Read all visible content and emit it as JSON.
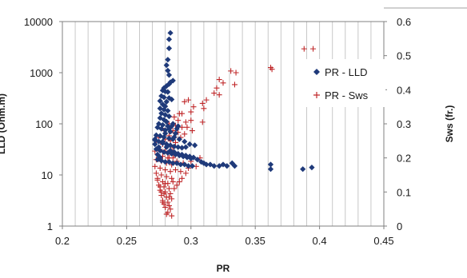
{
  "chart_data": {
    "type": "scatter",
    "xlabel": "PR",
    "ylabel_left": "LLD (Ohm.m)",
    "ylabel_right": "Sws (fr.)",
    "xlim": [
      0.2,
      0.45
    ],
    "ylim_left": [
      1,
      10000
    ],
    "yscale_left": "log",
    "ylim_right": [
      0,
      0.6
    ],
    "x_ticks": [
      "0.2",
      "0.25",
      "0.3",
      "0.35",
      "0.4",
      "0.45"
    ],
    "y_left_ticks": [
      "1",
      "10",
      "100",
      "1000",
      "10000"
    ],
    "y_right_ticks": [
      "0",
      "0.1",
      "0.2",
      "0.3",
      "0.4",
      "0.5",
      "0.6"
    ],
    "grid": "vertical",
    "legend_position": "right",
    "colors": {
      "lld": "#1f3a7a",
      "sws": "#c0282a"
    },
    "series": [
      {
        "name": "PR - LLD",
        "marker": "diamond",
        "axis": "left",
        "points": [
          [
            0.284,
            6000
          ],
          [
            0.283,
            4500
          ],
          [
            0.283,
            3000
          ],
          [
            0.282,
            1800
          ],
          [
            0.281,
            1400
          ],
          [
            0.282,
            1100
          ],
          [
            0.283,
            900
          ],
          [
            0.286,
            700
          ],
          [
            0.284,
            650
          ],
          [
            0.283,
            600
          ],
          [
            0.281,
            550
          ],
          [
            0.279,
            500
          ],
          [
            0.278,
            450
          ],
          [
            0.28,
            430
          ],
          [
            0.282,
            420
          ],
          [
            0.277,
            350
          ],
          [
            0.279,
            330
          ],
          [
            0.283,
            320
          ],
          [
            0.276,
            280
          ],
          [
            0.281,
            270
          ],
          [
            0.285,
            300
          ],
          [
            0.278,
            240
          ],
          [
            0.28,
            220
          ],
          [
            0.276,
            200
          ],
          [
            0.279,
            190
          ],
          [
            0.282,
            180
          ],
          [
            0.277,
            160
          ],
          [
            0.28,
            150
          ],
          [
            0.283,
            140
          ],
          [
            0.276,
            130
          ],
          [
            0.279,
            120
          ],
          [
            0.281,
            110
          ],
          [
            0.275,
            100
          ],
          [
            0.278,
            95
          ],
          [
            0.282,
            90
          ],
          [
            0.286,
            100
          ],
          [
            0.29,
            90
          ],
          [
            0.274,
            85
          ],
          [
            0.277,
            80
          ],
          [
            0.28,
            75
          ],
          [
            0.284,
            70
          ],
          [
            0.288,
            65
          ],
          [
            0.273,
            60
          ],
          [
            0.276,
            58
          ],
          [
            0.279,
            55
          ],
          [
            0.283,
            52
          ],
          [
            0.286,
            50
          ],
          [
            0.272,
            48
          ],
          [
            0.275,
            45
          ],
          [
            0.278,
            42
          ],
          [
            0.281,
            40
          ],
          [
            0.284,
            38
          ],
          [
            0.287,
            36
          ],
          [
            0.29,
            35
          ],
          [
            0.293,
            34
          ],
          [
            0.273,
            32
          ],
          [
            0.276,
            30
          ],
          [
            0.279,
            28
          ],
          [
            0.282,
            27
          ],
          [
            0.285,
            26
          ],
          [
            0.288,
            25
          ],
          [
            0.291,
            24
          ],
          [
            0.294,
            23
          ],
          [
            0.297,
            22
          ],
          [
            0.3,
            21
          ],
          [
            0.274,
            20
          ],
          [
            0.277,
            19
          ],
          [
            0.28,
            18
          ],
          [
            0.283,
            18
          ],
          [
            0.286,
            17
          ],
          [
            0.289,
            17
          ],
          [
            0.292,
            16
          ],
          [
            0.295,
            16
          ],
          [
            0.298,
            15
          ],
          [
            0.301,
            15
          ],
          [
            0.278,
            45
          ],
          [
            0.281,
            35
          ],
          [
            0.284,
            30
          ],
          [
            0.287,
            28
          ],
          [
            0.29,
            26
          ],
          [
            0.293,
            25
          ],
          [
            0.296,
            24
          ],
          [
            0.299,
            23
          ],
          [
            0.302,
            22
          ],
          [
            0.305,
            20
          ],
          [
            0.308,
            18
          ],
          [
            0.31,
            17
          ],
          [
            0.312,
            16
          ],
          [
            0.315,
            16
          ],
          [
            0.318,
            15
          ],
          [
            0.322,
            15
          ],
          [
            0.325,
            16
          ],
          [
            0.328,
            15
          ],
          [
            0.332,
            17
          ],
          [
            0.334,
            15
          ],
          [
            0.362,
            16
          ],
          [
            0.362,
            13
          ],
          [
            0.387,
            13
          ],
          [
            0.394,
            14
          ],
          [
            0.296,
            35
          ],
          [
            0.299,
            40
          ],
          [
            0.303,
            38
          ],
          [
            0.287,
            55
          ],
          [
            0.291,
            50
          ],
          [
            0.295,
            45
          ],
          [
            0.28,
            65
          ],
          [
            0.283,
            80
          ],
          [
            0.285,
            90
          ],
          [
            0.289,
            80
          ],
          [
            0.275,
            35
          ],
          [
            0.272,
            50
          ],
          [
            0.272,
            40
          ],
          [
            0.274,
            25
          ],
          [
            0.276,
            22
          ]
        ]
      },
      {
        "name": "PR - Sws",
        "marker": "plus",
        "axis": "right",
        "points": [
          [
            0.388,
            0.52
          ],
          [
            0.395,
            0.52
          ],
          [
            0.362,
            0.465
          ],
          [
            0.363,
            0.46
          ],
          [
            0.331,
            0.455
          ],
          [
            0.335,
            0.45
          ],
          [
            0.322,
            0.43
          ],
          [
            0.325,
            0.42
          ],
          [
            0.334,
            0.415
          ],
          [
            0.32,
            0.405
          ],
          [
            0.318,
            0.39
          ],
          [
            0.322,
            0.385
          ],
          [
            0.312,
            0.37
          ],
          [
            0.309,
            0.36
          ],
          [
            0.298,
            0.37
          ],
          [
            0.295,
            0.365
          ],
          [
            0.302,
            0.35
          ],
          [
            0.31,
            0.345
          ],
          [
            0.3,
            0.335
          ],
          [
            0.293,
            0.33
          ],
          [
            0.29,
            0.31
          ],
          [
            0.296,
            0.305
          ],
          [
            0.3,
            0.31
          ],
          [
            0.309,
            0.305
          ],
          [
            0.288,
            0.295
          ],
          [
            0.293,
            0.29
          ],
          [
            0.297,
            0.29
          ],
          [
            0.301,
            0.28
          ],
          [
            0.286,
            0.28
          ],
          [
            0.29,
            0.275
          ],
          [
            0.295,
            0.27
          ],
          [
            0.283,
            0.265
          ],
          [
            0.287,
            0.26
          ],
          [
            0.292,
            0.26
          ],
          [
            0.28,
            0.255
          ],
          [
            0.284,
            0.25
          ],
          [
            0.288,
            0.245
          ],
          [
            0.278,
            0.24
          ],
          [
            0.282,
            0.235
          ],
          [
            0.286,
            0.23
          ],
          [
            0.276,
            0.225
          ],
          [
            0.28,
            0.22
          ],
          [
            0.284,
            0.215
          ],
          [
            0.274,
            0.21
          ],
          [
            0.278,
            0.205
          ],
          [
            0.282,
            0.2
          ],
          [
            0.286,
            0.2
          ],
          [
            0.273,
            0.195
          ],
          [
            0.277,
            0.19
          ],
          [
            0.281,
            0.185
          ],
          [
            0.285,
            0.18
          ],
          [
            0.289,
            0.19
          ],
          [
            0.294,
            0.185
          ],
          [
            0.3,
            0.19
          ],
          [
            0.307,
            0.2
          ],
          [
            0.272,
            0.175
          ],
          [
            0.276,
            0.17
          ],
          [
            0.28,
            0.165
          ],
          [
            0.284,
            0.16
          ],
          [
            0.288,
            0.165
          ],
          [
            0.292,
            0.16
          ],
          [
            0.273,
            0.155
          ],
          [
            0.277,
            0.15
          ],
          [
            0.281,
            0.145
          ],
          [
            0.285,
            0.14
          ],
          [
            0.274,
            0.135
          ],
          [
            0.278,
            0.13
          ],
          [
            0.282,
            0.125
          ],
          [
            0.286,
            0.13
          ],
          [
            0.275,
            0.12
          ],
          [
            0.279,
            0.115
          ],
          [
            0.283,
            0.11
          ],
          [
            0.276,
            0.105
          ],
          [
            0.28,
            0.1
          ],
          [
            0.284,
            0.095
          ],
          [
            0.277,
            0.09
          ],
          [
            0.281,
            0.085
          ],
          [
            0.285,
            0.08
          ],
          [
            0.278,
            0.075
          ],
          [
            0.282,
            0.07
          ],
          [
            0.279,
            0.065
          ],
          [
            0.283,
            0.06
          ],
          [
            0.28,
            0.055
          ],
          [
            0.284,
            0.05
          ],
          [
            0.282,
            0.04
          ],
          [
            0.281,
            0.035
          ],
          [
            0.285,
            0.03
          ],
          [
            0.276,
            0.115
          ],
          [
            0.279,
            0.095
          ],
          [
            0.283,
            0.085
          ],
          [
            0.287,
            0.11
          ],
          [
            0.289,
            0.12
          ],
          [
            0.291,
            0.13
          ],
          [
            0.293,
            0.14
          ],
          [
            0.296,
            0.155
          ],
          [
            0.298,
            0.17
          ],
          [
            0.304,
            0.175
          ],
          [
            0.275,
            0.26
          ],
          [
            0.279,
            0.28
          ],
          [
            0.283,
            0.3
          ],
          [
            0.287,
            0.32
          ],
          [
            0.291,
            0.33
          ],
          [
            0.283,
            0.2
          ],
          [
            0.287,
            0.21
          ],
          [
            0.277,
            0.1
          ],
          [
            0.274,
            0.14
          ],
          [
            0.272,
            0.22
          ],
          [
            0.273,
            0.25
          ],
          [
            0.278,
            0.07
          ],
          [
            0.28,
            0.125
          ]
        ]
      }
    ]
  }
}
